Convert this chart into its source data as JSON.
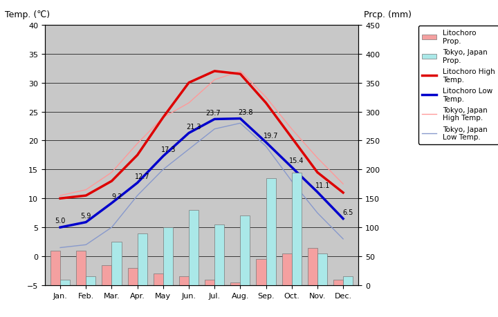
{
  "months": [
    "Jan.",
    "Feb.",
    "Mar.",
    "Apr.",
    "May",
    "Jun.",
    "Jul.",
    "Aug.",
    "Sep.",
    "Oct.",
    "Nov.",
    "Dec."
  ],
  "litochoro_precip": [
    60,
    60,
    35,
    30,
    20,
    15,
    10,
    5,
    45,
    55,
    65,
    10
  ],
  "tokyo_precip": [
    10,
    15,
    75,
    90,
    100,
    130,
    105,
    120,
    185,
    195,
    55,
    15
  ],
  "litochoro_high": [
    10.0,
    10.5,
    13.0,
    17.5,
    24.0,
    30.0,
    32.0,
    31.5,
    26.5,
    20.5,
    14.5,
    11.0
  ],
  "litochoro_low": [
    5.0,
    5.9,
    9.2,
    12.7,
    17.3,
    21.3,
    23.7,
    23.8,
    19.7,
    15.4,
    11.1,
    6.5
  ],
  "tokyo_high": [
    10.5,
    11.5,
    14.5,
    19.5,
    24.0,
    26.5,
    30.5,
    32.0,
    27.5,
    22.0,
    17.0,
    12.5
  ],
  "tokyo_low": [
    1.5,
    2.0,
    5.0,
    10.5,
    15.0,
    18.5,
    22.0,
    23.0,
    19.0,
    13.0,
    7.5,
    3.0
  ],
  "litochoro_precip_color": "#f4a0a0",
  "tokyo_precip_color": "#aae8e8",
  "litochoro_high_color": "#dd0000",
  "litochoro_low_color": "#0000cc",
  "tokyo_high_color": "#ff9999",
  "tokyo_low_color": "#8899cc",
  "bg_color": "#c8c8c8",
  "temp_ylim": [
    -5,
    40
  ],
  "prcp_ylim": [
    0,
    450
  ],
  "temp_yticks": [
    -5,
    0,
    5,
    10,
    15,
    20,
    25,
    30,
    35,
    40
  ],
  "prcp_yticks": [
    0,
    50,
    100,
    150,
    200,
    250,
    300,
    350,
    400,
    450
  ],
  "ylabel_left": "Temp. (℃)",
  "ylabel_right": "Prcp. (mm)",
  "label_litochoro_precip": "Litochoro\nProp.",
  "label_tokyo_precip": "Tokyo, Japan\nProp.",
  "label_litochoro_high": "Litochoro High\nTemp.",
  "label_litochoro_low": "Litochoro Low\nTemp.",
  "label_tokyo_high": "Tokyo, Japan\nHigh Temp.",
  "label_tokyo_low": "Tokyo, Japan\nLow Temp."
}
